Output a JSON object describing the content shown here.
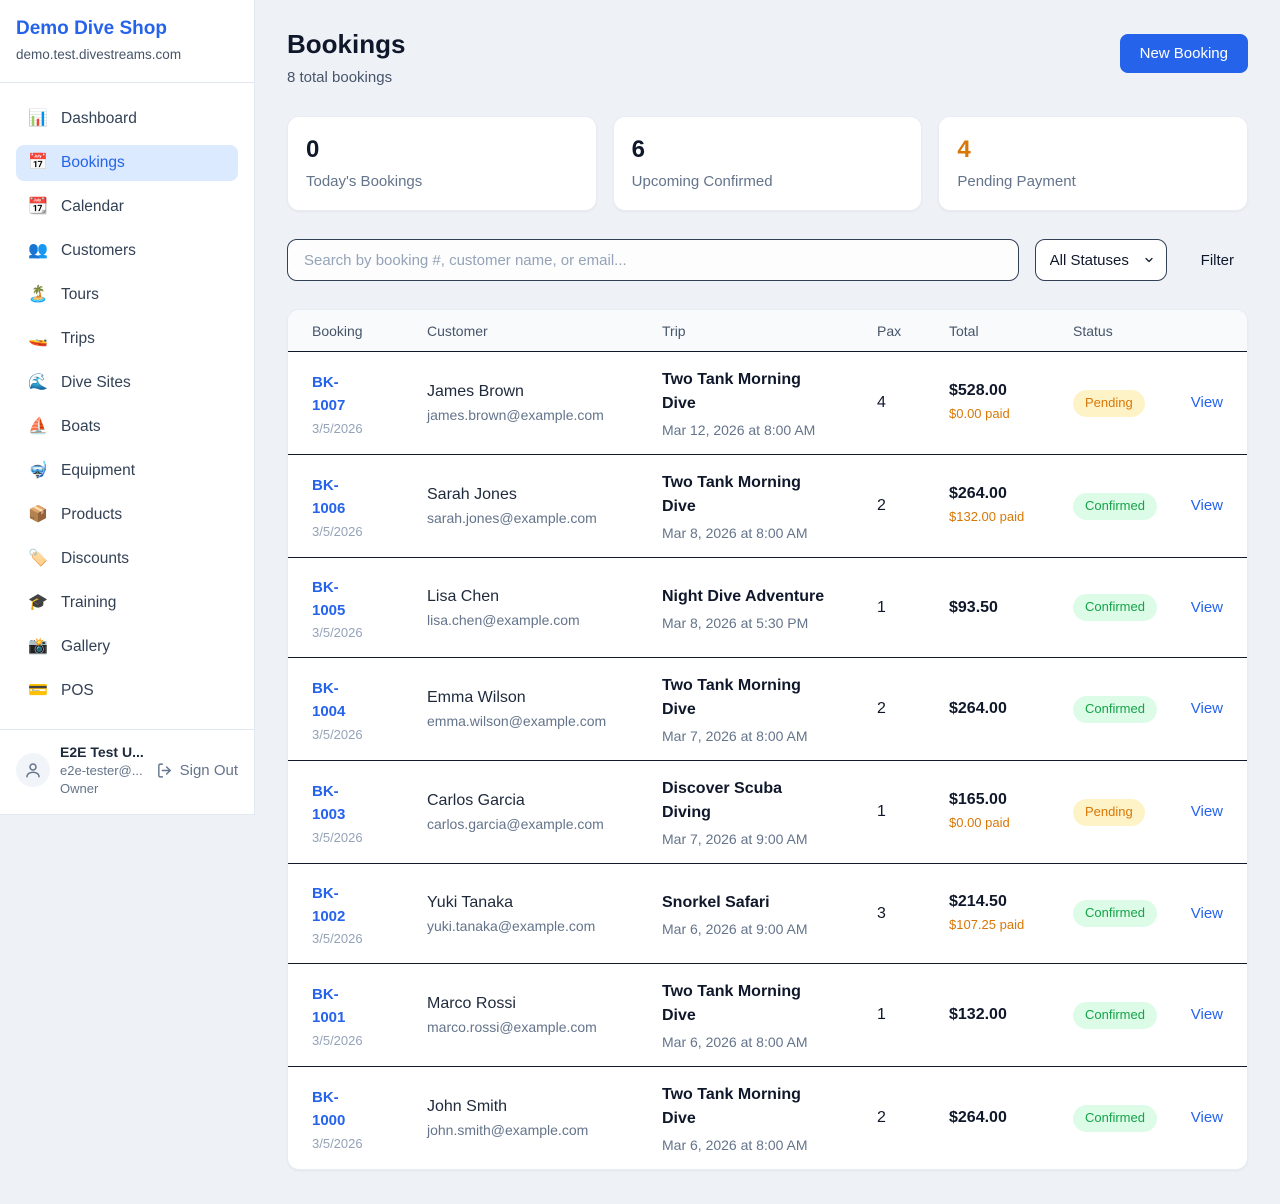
{
  "sidebar": {
    "title": "Demo Dive Shop",
    "subdomain": "demo.test.divestreams.com",
    "items": [
      {
        "label": "Dashboard",
        "icon": "📊",
        "icon_name": "dashboard-icon",
        "active": false
      },
      {
        "label": "Bookings",
        "icon": "📅",
        "icon_name": "bookings-icon",
        "active": true
      },
      {
        "label": "Calendar",
        "icon": "📆",
        "icon_name": "calendar-icon",
        "active": false
      },
      {
        "label": "Customers",
        "icon": "👥",
        "icon_name": "customers-icon",
        "active": false
      },
      {
        "label": "Tours",
        "icon": "🏝️",
        "icon_name": "tours-icon",
        "active": false
      },
      {
        "label": "Trips",
        "icon": "🚤",
        "icon_name": "trips-icon",
        "active": false
      },
      {
        "label": "Dive Sites",
        "icon": "🌊",
        "icon_name": "dive-sites-icon",
        "active": false
      },
      {
        "label": "Boats",
        "icon": "⛵",
        "icon_name": "boats-icon",
        "active": false
      },
      {
        "label": "Equipment",
        "icon": "🤿",
        "icon_name": "equipment-icon",
        "active": false
      },
      {
        "label": "Products",
        "icon": "📦",
        "icon_name": "products-icon",
        "active": false
      },
      {
        "label": "Discounts",
        "icon": "🏷️",
        "icon_name": "discounts-icon",
        "active": false
      },
      {
        "label": "Training",
        "icon": "🎓",
        "icon_name": "training-icon",
        "active": false
      },
      {
        "label": "Gallery",
        "icon": "📸",
        "icon_name": "gallery-icon",
        "active": false
      },
      {
        "label": "POS",
        "icon": "💳",
        "icon_name": "pos-icon",
        "active": false
      }
    ],
    "user": {
      "name": "E2E Test U...",
      "email": "e2e-tester@...",
      "role": "Owner",
      "sign_out_label": "Sign Out"
    }
  },
  "header": {
    "title": "Bookings",
    "subtitle": "8 total bookings",
    "new_booking_label": "New Booking"
  },
  "stats": [
    {
      "value": "0",
      "label": "Today's Bookings",
      "accent": false
    },
    {
      "value": "6",
      "label": "Upcoming Confirmed",
      "accent": false
    },
    {
      "value": "4",
      "label": "Pending Payment",
      "accent": true
    }
  ],
  "filters": {
    "search_placeholder": "Search by booking #, customer name, or email...",
    "status_selected": "All Statuses",
    "filter_label": "Filter"
  },
  "table": {
    "columns": [
      "Booking",
      "Customer",
      "Trip",
      "Pax",
      "Total",
      "Status"
    ],
    "view_label": "View",
    "rows": [
      {
        "booking_id": "BK-1007",
        "booking_date": "3/5/2026",
        "customer_name": "James Brown",
        "customer_email": "james.brown@example.com",
        "trip_name": "Two Tank Morning Dive",
        "trip_datetime": "Mar 12, 2026 at 8:00 AM",
        "pax": "4",
        "total": "$528.00",
        "paid": "$0.00 paid",
        "status": "Pending"
      },
      {
        "booking_id": "BK-1006",
        "booking_date": "3/5/2026",
        "customer_name": "Sarah Jones",
        "customer_email": "sarah.jones@example.com",
        "trip_name": "Two Tank Morning Dive",
        "trip_datetime": "Mar 8, 2026 at 8:00 AM",
        "pax": "2",
        "total": "$264.00",
        "paid": "$132.00 paid",
        "status": "Confirmed"
      },
      {
        "booking_id": "BK-1005",
        "booking_date": "3/5/2026",
        "customer_name": "Lisa Chen",
        "customer_email": "lisa.chen@example.com",
        "trip_name": "Night Dive Adventure",
        "trip_datetime": "Mar 8, 2026 at 5:30 PM",
        "pax": "1",
        "total": "$93.50",
        "paid": null,
        "status": "Confirmed"
      },
      {
        "booking_id": "BK-1004",
        "booking_date": "3/5/2026",
        "customer_name": "Emma Wilson",
        "customer_email": "emma.wilson@example.com",
        "trip_name": "Two Tank Morning Dive",
        "trip_datetime": "Mar 7, 2026 at 8:00 AM",
        "pax": "2",
        "total": "$264.00",
        "paid": null,
        "status": "Confirmed"
      },
      {
        "booking_id": "BK-1003",
        "booking_date": "3/5/2026",
        "customer_name": "Carlos Garcia",
        "customer_email": "carlos.garcia@example.com",
        "trip_name": "Discover Scuba Diving",
        "trip_datetime": "Mar 7, 2026 at 9:00 AM",
        "pax": "1",
        "total": "$165.00",
        "paid": "$0.00 paid",
        "status": "Pending"
      },
      {
        "booking_id": "BK-1002",
        "booking_date": "3/5/2026",
        "customer_name": "Yuki Tanaka",
        "customer_email": "yuki.tanaka@example.com",
        "trip_name": "Snorkel Safari",
        "trip_datetime": "Mar 6, 2026 at 9:00 AM",
        "pax": "3",
        "total": "$214.50",
        "paid": "$107.25 paid",
        "status": "Confirmed"
      },
      {
        "booking_id": "BK-1001",
        "booking_date": "3/5/2026",
        "customer_name": "Marco Rossi",
        "customer_email": "marco.rossi@example.com",
        "trip_name": "Two Tank Morning Dive",
        "trip_datetime": "Mar 6, 2026 at 8:00 AM",
        "pax": "1",
        "total": "$132.00",
        "paid": null,
        "status": "Confirmed"
      },
      {
        "booking_id": "BK-1000",
        "booking_date": "3/5/2026",
        "customer_name": "John Smith",
        "customer_email": "john.smith@example.com",
        "trip_name": "Two Tank Morning Dive",
        "trip_datetime": "Mar 6, 2026 at 8:00 AM",
        "pax": "2",
        "total": "$264.00",
        "paid": null,
        "status": "Confirmed"
      }
    ]
  },
  "colors": {
    "accent_blue": "#2563eb",
    "active_nav_bg": "#dbeafe",
    "pending_text": "#d97706",
    "pending_bg": "#fef3c7",
    "confirmed_text": "#16a34a",
    "confirmed_bg": "#dcfce7",
    "page_bg": "#eef2f7",
    "row_divider": "#111a28"
  }
}
